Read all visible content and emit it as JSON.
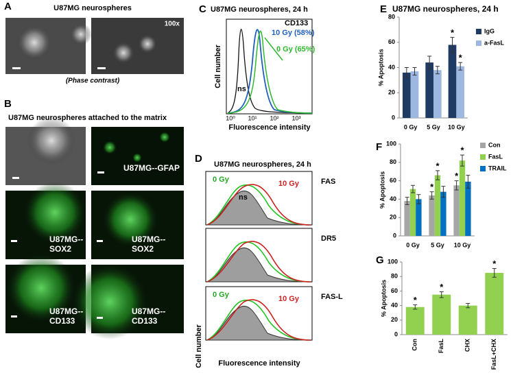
{
  "panel_a": {
    "letter": "A",
    "title": "U87MG neurospheres",
    "magnification": "100x",
    "caption": "(Phase contrast)"
  },
  "panel_b": {
    "letter": "B",
    "title": "U87MG neurospheres attached to the matrix",
    "image_labels": [
      [
        "U87MG--GFAP"
      ],
      [
        "U87MG--",
        "SOX2"
      ],
      [
        "U87MG--",
        "SOX2"
      ],
      [
        "U87MG--",
        "CD133"
      ],
      [
        "U87MG--",
        "CD133"
      ]
    ]
  },
  "panel_c": {
    "letter": "C",
    "title": "U87MG neurospheres, 24 h",
    "marker": "CD133",
    "annotations": [
      "10 Gy (58%)",
      "0 Gy (65%)",
      "ns"
    ],
    "x_tick_labels": [
      "10⁰",
      "10¹",
      "10²",
      "10³"
    ],
    "x_label": "Fluorescence intensity",
    "y_label": "Cell number"
  },
  "panel_d": {
    "letter": "D",
    "title": "U87MG neurospheres, 24 h",
    "subplots": [
      {
        "marker": "FAS",
        "annotations": [
          "0 Gy",
          "10 Gy",
          "ns"
        ]
      },
      {
        "marker": "DR5",
        "annotations": []
      },
      {
        "marker": "FAS-L",
        "annotations": [
          "0 Gy",
          "10 Gy"
        ]
      }
    ],
    "x_label": "Fluorescence intensity",
    "y_label": "Cell number"
  },
  "chart_data": [
    {
      "type": "bar",
      "panel_label": "E",
      "title": "U87MG neurospheres, 24 h",
      "y_label": "% Apoptosis",
      "categories": [
        "0 Gy",
        "5 Gy",
        "10 Gy"
      ],
      "series": [
        {
          "name": "IgG",
          "color": "#1f3a63",
          "values": [
            36,
            44,
            58
          ],
          "errors": [
            4,
            5,
            6
          ],
          "significance": [
            null,
            null,
            "*"
          ]
        },
        {
          "name": "a-FasL",
          "color": "#9db7e0",
          "values": [
            37,
            38,
            41
          ],
          "errors": [
            3,
            3,
            3
          ],
          "significance": [
            null,
            null,
            "*"
          ]
        }
      ],
      "ylim": [
        0,
        80
      ],
      "yticks": [
        0,
        20,
        40,
        60,
        80
      ]
    },
    {
      "type": "bar",
      "panel_label": "F",
      "y_label": "% Apoptosis",
      "categories": [
        "0 Gy",
        "5 Gy",
        "10 Gy"
      ],
      "series": [
        {
          "name": "Con",
          "color": "#a6a6a6",
          "values": [
            38,
            44,
            55
          ],
          "errors": [
            4,
            4,
            5
          ],
          "significance": [
            null,
            "*",
            "*"
          ]
        },
        {
          "name": "FasL",
          "color": "#92d050",
          "values": [
            51,
            66,
            82
          ],
          "errors": [
            4,
            5,
            6
          ],
          "significance": [
            null,
            "*",
            "*"
          ]
        },
        {
          "name": "TRAIL",
          "color": "#0070c0",
          "values": [
            40,
            48,
            59
          ],
          "errors": [
            5,
            6,
            7
          ],
          "significance": [
            null,
            null,
            null
          ]
        }
      ],
      "ylim": [
        0,
        100
      ],
      "yticks": [
        0,
        20,
        40,
        60,
        80,
        100
      ]
    },
    {
      "type": "bar",
      "panel_label": "G",
      "y_label": "% Apoptosis",
      "categories": [
        "Con",
        "FasL",
        "CHX",
        "FasL+CHX"
      ],
      "values": [
        38,
        55,
        40,
        85
      ],
      "errors": [
        3,
        4,
        3,
        6
      ],
      "significance": [
        "*",
        "*",
        null,
        "*"
      ],
      "color": "#92d050",
      "ylim": [
        0,
        100
      ],
      "yticks": [
        0,
        20,
        40,
        60,
        80,
        100
      ]
    }
  ]
}
